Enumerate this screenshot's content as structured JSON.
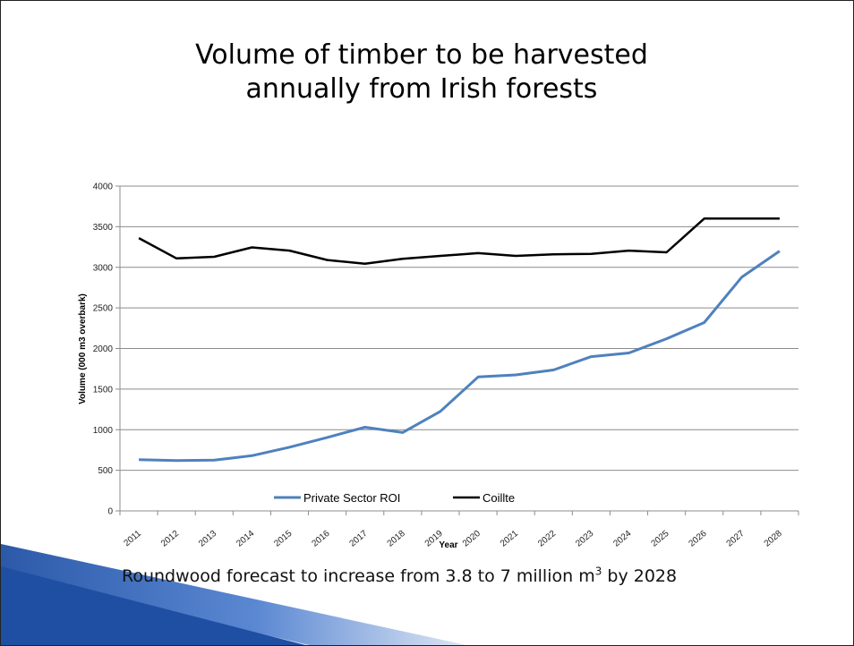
{
  "slide": {
    "title_line1": "Volume of timber to be harvested",
    "title_line2": "annually from Irish forests",
    "note_before_sup": "Roundwood forecast to increase from 3.8 to 7 million m",
    "note_sup": "3",
    "note_after_sup": " by 2028"
  },
  "chart_data": {
    "type": "line",
    "xlabel": "Year",
    "ylabel": "Volume (000 m3 overbark)",
    "ylim": [
      0,
      4000
    ],
    "yticks": [
      0,
      500,
      1000,
      1500,
      2000,
      2500,
      3000,
      3500,
      4000
    ],
    "grid": true,
    "legend_position": "bottom",
    "categories": [
      "2011",
      "2012",
      "2013",
      "2014",
      "2015",
      "2016",
      "2017",
      "2018",
      "2019",
      "2020",
      "2021",
      "2022",
      "2023",
      "2024",
      "2025",
      "2026",
      "2027",
      "2028"
    ],
    "series": [
      {
        "name": "Private Sector ROI",
        "color": "#4f81bd",
        "values": [
          630,
          620,
          625,
          680,
          785,
          905,
          1030,
          965,
          1225,
          1650,
          1675,
          1735,
          1900,
          1945,
          2120,
          2320,
          2880,
          3200
        ]
      },
      {
        "name": "Coillte",
        "color": "#000000",
        "values": [
          3360,
          3110,
          3130,
          3245,
          3205,
          3090,
          3045,
          3105,
          3140,
          3175,
          3140,
          3160,
          3165,
          3205,
          3185,
          3600,
          3600,
          3600
        ]
      }
    ]
  }
}
